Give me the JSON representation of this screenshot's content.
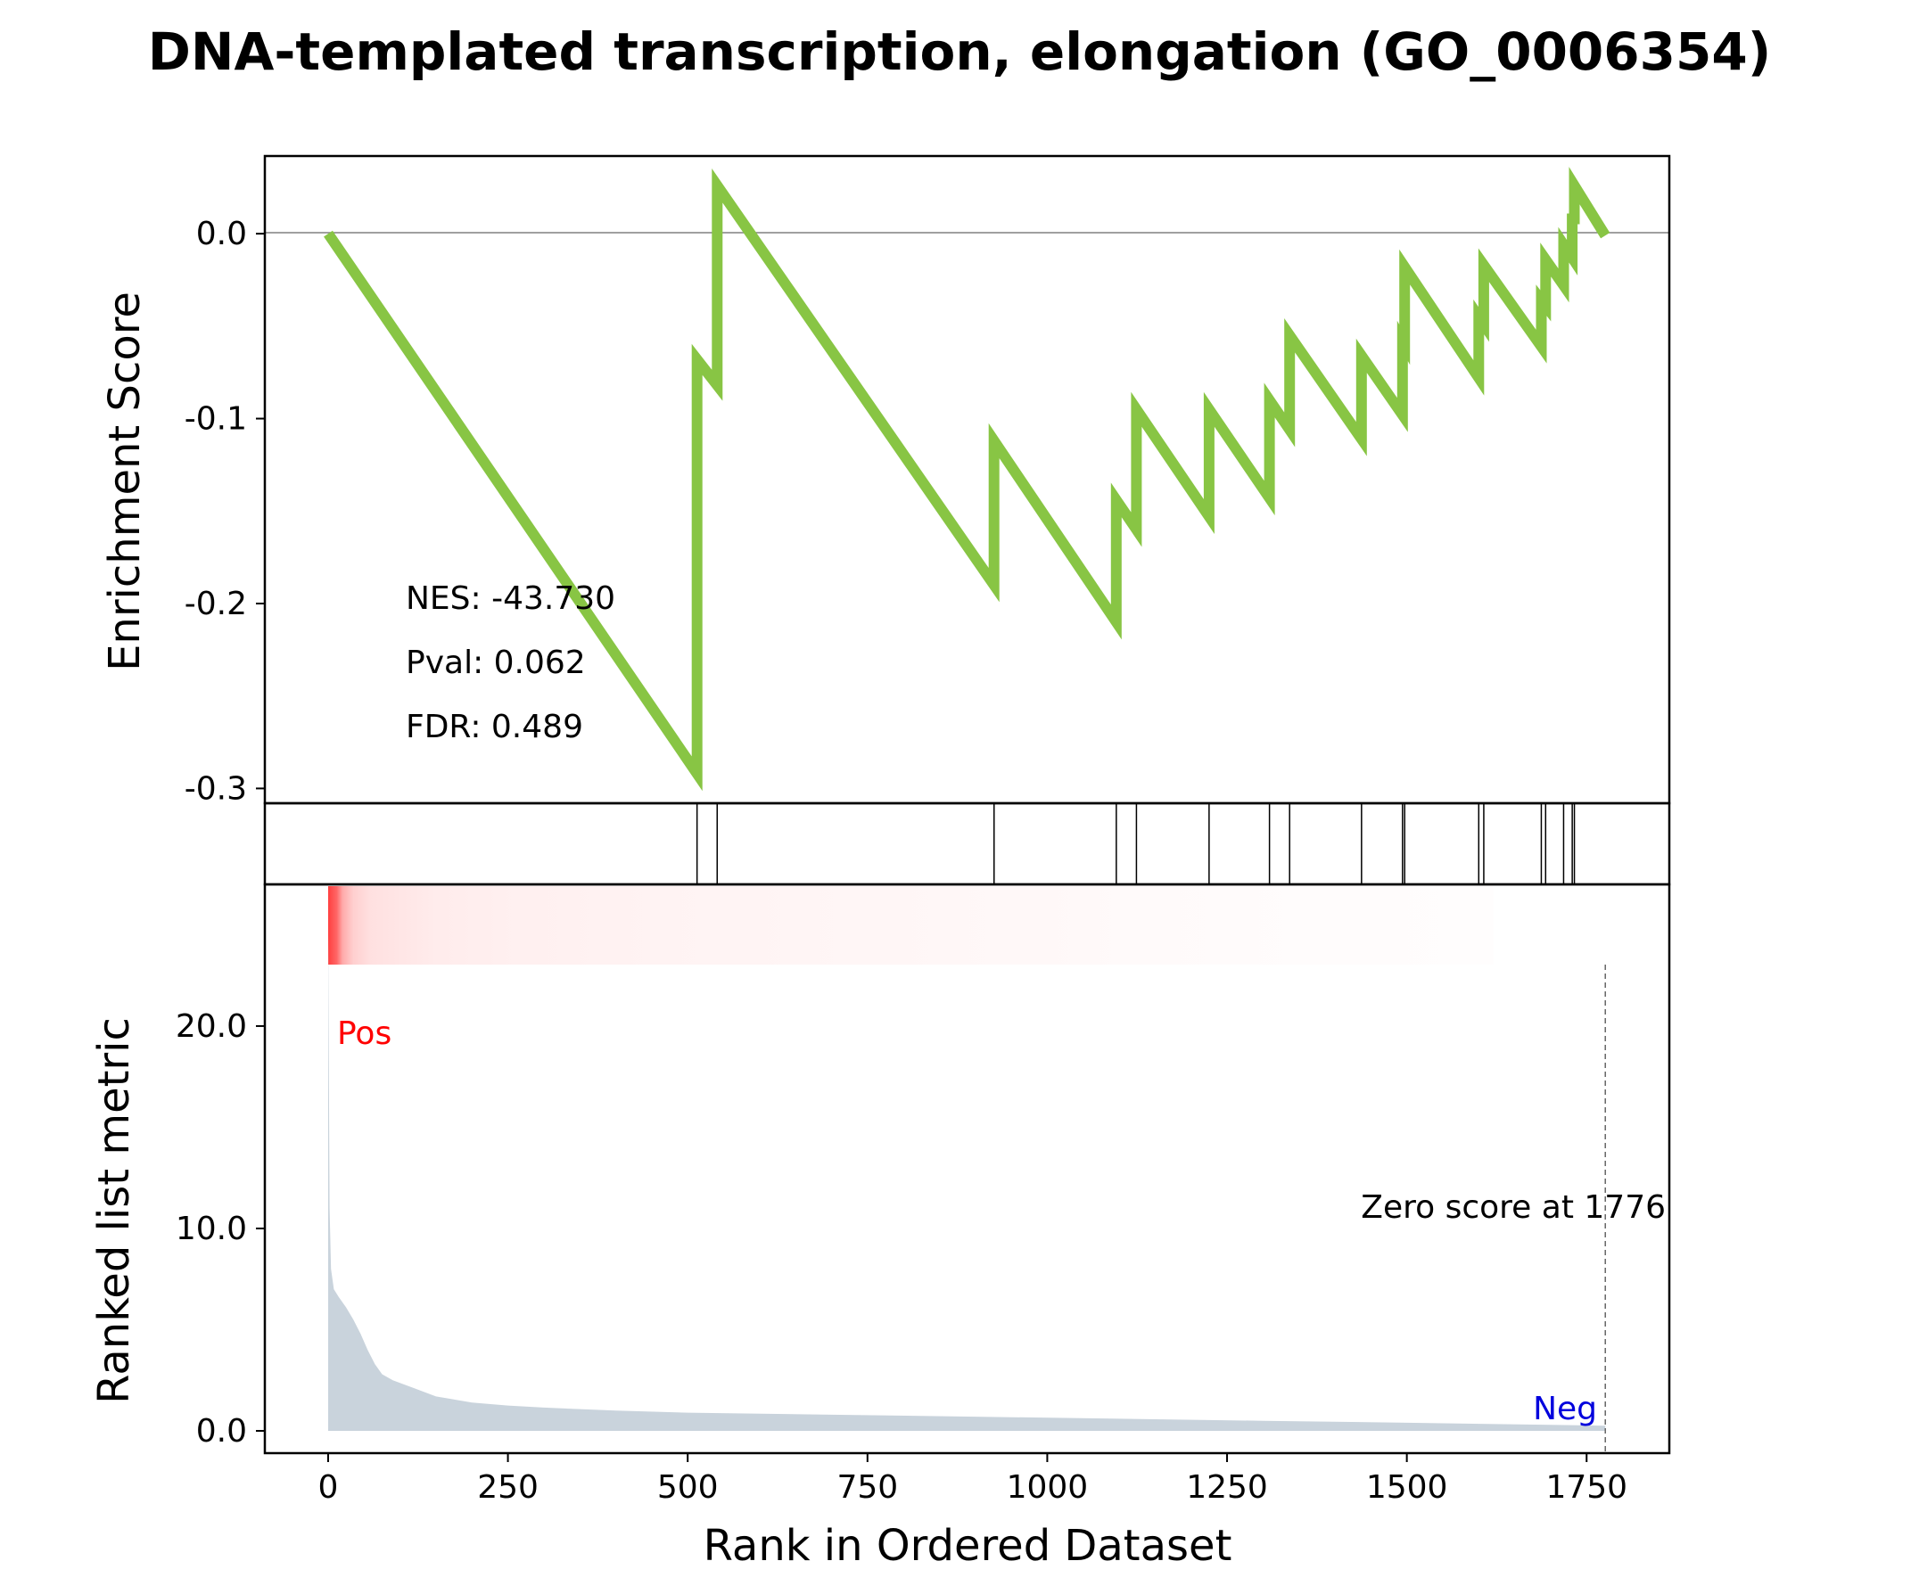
{
  "chart_data": {
    "type": "line",
    "title": "DNA-templated transcription, elongation (GO_0006354)",
    "colors": {
      "es_line": "#88c544",
      "metric_fill": "#c9d3dc",
      "pos_label": "#ff0000",
      "neg_label": "#0000dd",
      "heat_red": "#ff4040"
    },
    "es_panel": {
      "ylabel": "Enrichment Score",
      "ylim": [
        -0.308,
        0.042
      ],
      "yticks": [
        0.0,
        -0.1,
        -0.2,
        -0.3
      ],
      "ytick_labels": [
        "0.0",
        "-0.1",
        "-0.2",
        "-0.3"
      ],
      "stats": [
        "NES: -43.730",
        "Pval: 0.062",
        "FDR: 0.489"
      ],
      "points": [
        [
          0,
          0.0
        ],
        [
          513,
          -0.292
        ],
        [
          513,
          -0.068
        ],
        [
          541,
          -0.082
        ],
        [
          541,
          0.026
        ],
        [
          926,
          -0.19
        ],
        [
          926,
          -0.112
        ],
        [
          1096,
          -0.21
        ],
        [
          1096,
          -0.144
        ],
        [
          1124,
          -0.16
        ],
        [
          1124,
          -0.095
        ],
        [
          1225,
          -0.153
        ],
        [
          1225,
          -0.095
        ],
        [
          1309,
          -0.143
        ],
        [
          1309,
          -0.09
        ],
        [
          1337,
          -0.106
        ],
        [
          1337,
          -0.055
        ],
        [
          1437,
          -0.111
        ],
        [
          1437,
          -0.066
        ],
        [
          1494,
          -0.098
        ],
        [
          1494,
          -0.058
        ],
        [
          1497,
          -0.06
        ],
        [
          1497,
          -0.018
        ],
        [
          1600,
          -0.078
        ],
        [
          1600,
          -0.045
        ],
        [
          1607,
          -0.049
        ],
        [
          1607,
          -0.017
        ],
        [
          1687,
          -0.061
        ],
        [
          1687,
          -0.036
        ],
        [
          1693,
          -0.039
        ],
        [
          1693,
          -0.014
        ],
        [
          1718,
          -0.028
        ],
        [
          1718,
          -0.006
        ],
        [
          1730,
          -0.013
        ],
        [
          1730,
          0.008
        ],
        [
          1733,
          0.008
        ],
        [
          1733,
          0.026
        ],
        [
          1776,
          -0.001
        ]
      ]
    },
    "hits": [
      513,
      541,
      926,
      1096,
      1124,
      1225,
      1309,
      1337,
      1437,
      1494,
      1497,
      1600,
      1607,
      1687,
      1693,
      1718,
      1730,
      1733
    ],
    "metric_panel": {
      "ylabel": "Ranked list metric",
      "xlabel": "Rank in Ordered Dataset",
      "ylim": [
        -1.1,
        27.0
      ],
      "yticks": [
        0.0,
        10.0,
        20.0
      ],
      "ytick_labels": [
        "0.0",
        "10.0",
        "20.0"
      ],
      "xlim": [
        -88,
        1865
      ],
      "xticks": [
        0,
        250,
        500,
        750,
        1000,
        1250,
        1500,
        1750
      ],
      "xtick_labels": [
        "0",
        "250",
        "500",
        "750",
        "1000",
        "1250",
        "1500",
        "1750"
      ],
      "pos_label": "Pos",
      "neg_label": "Neg",
      "zero_score_text": "Zero score at 1776",
      "zero_score_rank": 1776,
      "curve": [
        [
          0,
          24.5
        ],
        [
          2,
          11.0
        ],
        [
          4,
          8.0
        ],
        [
          8,
          7.0
        ],
        [
          15,
          6.6
        ],
        [
          25,
          6.1
        ],
        [
          35,
          5.5
        ],
        [
          45,
          4.8
        ],
        [
          55,
          4.0
        ],
        [
          65,
          3.3
        ],
        [
          75,
          2.8
        ],
        [
          90,
          2.5
        ],
        [
          120,
          2.1
        ],
        [
          150,
          1.7
        ],
        [
          200,
          1.4
        ],
        [
          250,
          1.25
        ],
        [
          300,
          1.15
        ],
        [
          400,
          1.0
        ],
        [
          500,
          0.9
        ],
        [
          700,
          0.8
        ],
        [
          900,
          0.7
        ],
        [
          1100,
          0.6
        ],
        [
          1300,
          0.5
        ],
        [
          1500,
          0.4
        ],
        [
          1700,
          0.3
        ],
        [
          1776,
          0.25
        ]
      ],
      "heat_stops": [
        [
          0,
          1.0
        ],
        [
          12,
          0.8
        ],
        [
          20,
          0.45
        ],
        [
          35,
          0.25
        ],
        [
          60,
          0.16
        ],
        [
          150,
          0.1
        ],
        [
          260,
          0.08
        ],
        [
          425,
          0.065
        ],
        [
          700,
          0.05
        ],
        [
          1000,
          0.035
        ],
        [
          1145,
          0.025
        ],
        [
          1420,
          0.015
        ],
        [
          1620,
          0.01
        ]
      ],
      "heat_end_rank": 1620
    }
  }
}
